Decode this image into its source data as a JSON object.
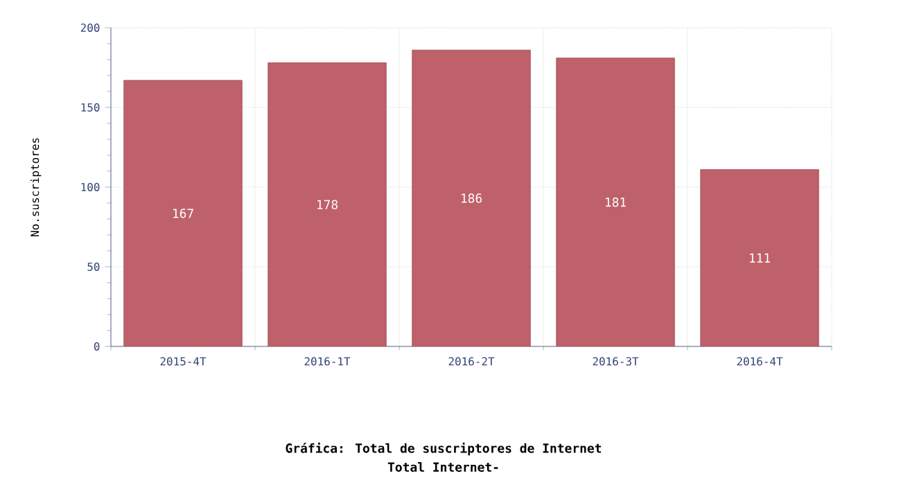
{
  "chart_data": {
    "type": "bar",
    "title": "Gráfica: Total de suscriptores de Internet",
    "subtitle": "Total Internet-",
    "ylabel": "No.suscriptores",
    "categories": [
      "2015-4T",
      "2016-1T",
      "2016-2T",
      "2016-3T",
      "2016-4T"
    ],
    "values": [
      167,
      178,
      186,
      181,
      111
    ],
    "color": "#bf616a",
    "ylim": [
      0,
      200
    ],
    "yticks": [
      0,
      50,
      100,
      150,
      200
    ],
    "grid": true,
    "data_labels": true
  }
}
